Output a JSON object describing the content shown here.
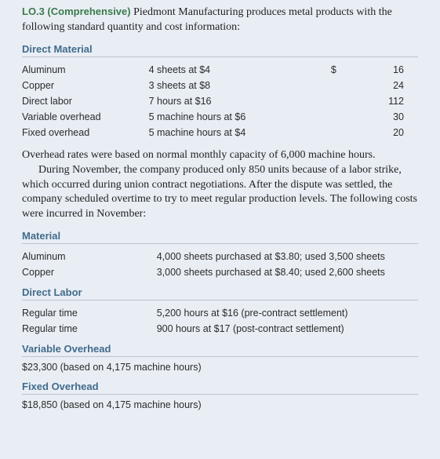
{
  "colors": {
    "background": "#e9eef4",
    "heading": "#416b8c",
    "lo": "#3a7a4b",
    "rule": "#b9c3cf",
    "body": "#222222"
  },
  "fonts": {
    "body_family": "Georgia, 'Times New Roman', serif",
    "body_size_pt": 10.5,
    "ui_family": "Arial, Helvetica, sans-serif",
    "ui_size_pt": 9.5,
    "heading_weight": "bold"
  },
  "lead": {
    "lo_label": "LO.3",
    "lo_tag": "(Comprehensive)",
    "text_rest": " Piedmont Manufacturing produces metal products with the following standard quantity and cost information:"
  },
  "std": {
    "heading": "Direct Material",
    "currency": "$",
    "col_widths_pct": [
      32,
      46,
      4,
      18
    ],
    "rows": [
      {
        "item": "Aluminum",
        "desc": "4 sheets at $4",
        "cur": "$",
        "amt": "16"
      },
      {
        "item": "Copper",
        "desc": "3 sheets at $8",
        "cur": "",
        "amt": "24"
      },
      {
        "item": "Direct labor",
        "desc": "7 hours at $16",
        "cur": "",
        "amt": "112"
      },
      {
        "item": "Variable overhead",
        "desc": "5 machine hours at $6",
        "cur": "",
        "amt": "30"
      },
      {
        "item": "Fixed overhead",
        "desc": "5 machine hours at $4",
        "cur": "",
        "amt": "20"
      }
    ]
  },
  "mid": {
    "p1": "Overhead rates were based on normal monthly capacity of 6,000 machine hours.",
    "p2": "During November, the company produced only 850 units because of a labor strike, which occurred during union contract negotiations. After the dispute was settled, the company scheduled overtime to try to meet regular production levels. The following costs were incurred in November:"
  },
  "material": {
    "heading": "Material",
    "rows": [
      {
        "item": "Aluminum",
        "desc": "4,000 sheets purchased at $3.80; used 3,500 sheets"
      },
      {
        "item": "Copper",
        "desc": "3,000 sheets purchased at $8.40; used 2,600 sheets"
      }
    ]
  },
  "labor": {
    "heading": "Direct Labor",
    "rows": [
      {
        "item": "Regular time",
        "desc": "5,200 hours at $16 (pre-contract settlement)"
      },
      {
        "item": "Regular time",
        "desc": "900 hours at $17 (post-contract settlement)"
      }
    ]
  },
  "voh": {
    "heading": "Variable Overhead",
    "note": "$23,300 (based on 4,175 machine hours)"
  },
  "foh": {
    "heading": "Fixed Overhead",
    "note": "$18,850 (based on 4,175 machine hours)"
  }
}
